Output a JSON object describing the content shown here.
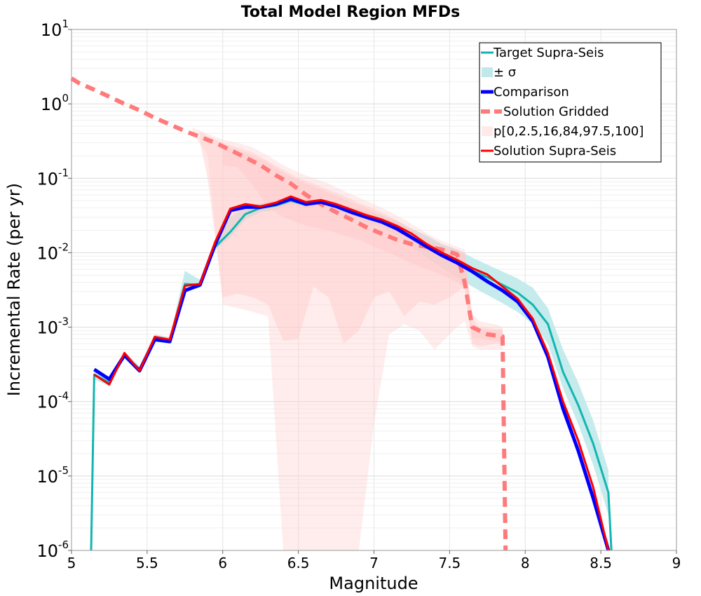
{
  "chart_data": {
    "type": "line",
    "title": "Total Model Region MFDs",
    "xlabel": "Magnitude",
    "ylabel": "Incremental Rate (per yr)",
    "xlim": [
      5,
      9
    ],
    "ylim": [
      1e-06,
      10
    ],
    "yscale": "log",
    "grid": true,
    "legend_position": "top-right",
    "x_ticks": [
      "5",
      "5.5",
      "6",
      "6.5",
      "7",
      "7.5",
      "8",
      "8.5",
      "9"
    ],
    "y_ticks": [
      {
        "value": 1e-06,
        "base": "10",
        "exp": "-6"
      },
      {
        "value": 1e-05,
        "base": "10",
        "exp": "-5"
      },
      {
        "value": 0.0001,
        "base": "10",
        "exp": "-4"
      },
      {
        "value": 0.001,
        "base": "10",
        "exp": "-3"
      },
      {
        "value": 0.01,
        "base": "10",
        "exp": "-2"
      },
      {
        "value": 0.1,
        "base": "10",
        "exp": "-1"
      },
      {
        "value": 1,
        "base": "10",
        "exp": "0"
      },
      {
        "value": 10,
        "base": "10",
        "exp": "1"
      }
    ],
    "legend": [
      {
        "label": "Target Supra-Seis",
        "style": "line",
        "color": "#12b5b0"
      },
      {
        "label": "± σ",
        "style": "patch",
        "color": "#bfe9ea"
      },
      {
        "label": "Comparison",
        "style": "thick",
        "color": "#0000ff"
      },
      {
        "label": "Solution Gridded",
        "style": "dashed",
        "color": "#ff7b7b"
      },
      {
        "label": "p[0,2.5,16,84,97.5,100]",
        "style": "patch",
        "color": "#ffe9e9"
      },
      {
        "label": "Solution Supra-Seis",
        "style": "line",
        "color": "#ff0000"
      }
    ],
    "series": [
      {
        "name": "Solution Gridded",
        "color": "#ff7b7b",
        "style": "dashed",
        "x": [
          5.0,
          5.05,
          5.15,
          5.25,
          5.35,
          5.45,
          5.55,
          5.65,
          5.75,
          5.85,
          5.95,
          6.05,
          6.15,
          6.25,
          6.35,
          6.45,
          6.55,
          6.65,
          6.75,
          6.85,
          6.95,
          7.05,
          7.15,
          7.25,
          7.35,
          7.45,
          7.55,
          7.6,
          7.65,
          7.75,
          7.85,
          7.85,
          7.87
        ],
        "y": [
          2.2,
          1.9,
          1.55,
          1.25,
          1.0,
          0.82,
          0.65,
          0.53,
          0.43,
          0.36,
          0.3,
          0.24,
          0.19,
          0.15,
          0.11,
          0.085,
          0.06,
          0.045,
          0.035,
          0.028,
          0.022,
          0.018,
          0.015,
          0.013,
          0.012,
          0.011,
          0.0095,
          0.004,
          0.001,
          0.0008,
          0.00075,
          0.00075,
          1e-06
        ]
      },
      {
        "name": "Target Supra-Seis",
        "color": "#12b5b0",
        "style": "line",
        "x": [
          5.13,
          5.15,
          5.25,
          5.35,
          5.45,
          5.55,
          5.65,
          5.75,
          5.85,
          5.95,
          6.05,
          6.15,
          6.25,
          6.35,
          6.45,
          6.55,
          6.65,
          6.75,
          6.85,
          6.95,
          7.05,
          7.15,
          7.25,
          7.35,
          7.45,
          7.55,
          7.65,
          7.75,
          7.85,
          7.95,
          8.05,
          8.15,
          8.25,
          8.35,
          8.45,
          8.55,
          8.57
        ],
        "y": [
          1e-06,
          0.00023,
          0.00018,
          0.00042,
          0.00027,
          0.00072,
          0.00066,
          0.0038,
          0.0037,
          0.012,
          0.019,
          0.033,
          0.04,
          0.043,
          0.05,
          0.044,
          0.048,
          0.042,
          0.036,
          0.031,
          0.027,
          0.022,
          0.016,
          0.012,
          0.0092,
          0.0072,
          0.0057,
          0.0047,
          0.0037,
          0.0029,
          0.002,
          0.0011,
          0.00025,
          9e-05,
          2.7e-05,
          6e-06,
          1e-06
        ]
      },
      {
        "name": "Comparison",
        "color": "#0000ff",
        "style": "thick",
        "x": [
          5.15,
          5.25,
          5.35,
          5.45,
          5.55,
          5.65,
          5.75,
          5.85,
          5.95,
          6.05,
          6.15,
          6.25,
          6.35,
          6.45,
          6.55,
          6.65,
          6.75,
          6.85,
          6.95,
          7.05,
          7.15,
          7.25,
          7.35,
          7.45,
          7.55,
          7.65,
          7.75,
          7.85,
          7.95,
          8.05,
          8.15,
          8.25,
          8.35,
          8.45,
          8.55
        ],
        "y": [
          0.00027,
          0.0002,
          0.00042,
          0.00026,
          0.00068,
          0.00064,
          0.0031,
          0.0037,
          0.013,
          0.037,
          0.041,
          0.041,
          0.045,
          0.053,
          0.045,
          0.048,
          0.042,
          0.035,
          0.03,
          0.026,
          0.021,
          0.016,
          0.012,
          0.0092,
          0.0073,
          0.0056,
          0.0041,
          0.0031,
          0.0022,
          0.0012,
          0.0004,
          8e-05,
          2.2e-05,
          5e-06,
          1e-06
        ]
      },
      {
        "name": "Solution Supra-Seis",
        "color": "#ff0000",
        "style": "line",
        "x": [
          5.15,
          5.25,
          5.35,
          5.45,
          5.55,
          5.65,
          5.75,
          5.85,
          5.95,
          6.05,
          6.15,
          6.25,
          6.35,
          6.45,
          6.55,
          6.65,
          6.75,
          6.85,
          6.95,
          7.05,
          7.15,
          7.25,
          7.35,
          7.45,
          7.55,
          7.65,
          7.75,
          7.85,
          7.95,
          8.05,
          8.15,
          8.25,
          8.35,
          8.45,
          8.55
        ],
        "y": [
          0.00023,
          0.00017,
          0.00045,
          0.00026,
          0.00074,
          0.00068,
          0.0036,
          0.0038,
          0.014,
          0.039,
          0.045,
          0.042,
          0.047,
          0.057,
          0.048,
          0.051,
          0.045,
          0.038,
          0.032,
          0.028,
          0.023,
          0.018,
          0.013,
          0.01,
          0.008,
          0.0062,
          0.0051,
          0.0035,
          0.0024,
          0.0013,
          0.00045,
          0.0001,
          3e-05,
          7e-06,
          1e-06
        ]
      }
    ],
    "bands": [
      {
        "name": "± σ",
        "color": "#bfe9ea",
        "opacity": 0.9,
        "x": [
          5.15,
          5.25,
          5.35,
          5.45,
          5.55,
          5.65,
          5.75,
          5.85,
          5.95,
          6.05,
          6.15,
          6.25,
          6.35,
          6.45,
          6.55,
          6.65,
          6.75,
          6.85,
          6.95,
          7.05,
          7.15,
          7.25,
          7.35,
          7.45,
          7.55,
          7.65,
          7.75,
          7.85,
          7.95,
          8.05,
          8.15,
          8.25,
          8.35,
          8.45,
          8.55
        ],
        "lower": [
          0.0002,
          0.00016,
          0.00038,
          0.00024,
          0.00064,
          0.0006,
          0.003,
          0.0034,
          0.011,
          0.016,
          0.028,
          0.035,
          0.038,
          0.045,
          0.04,
          0.043,
          0.037,
          0.031,
          0.026,
          0.022,
          0.017,
          0.012,
          0.0085,
          0.0063,
          0.0047,
          0.0035,
          0.0027,
          0.0021,
          0.0016,
          0.0011,
          0.0006,
          0.00015,
          5e-05,
          1.4e-05,
          3e-06
        ],
        "upper": [
          0.00026,
          0.0002,
          0.00047,
          0.0003,
          0.0008,
          0.00073,
          0.0057,
          0.0043,
          0.014,
          0.03,
          0.04,
          0.046,
          0.05,
          0.058,
          0.05,
          0.053,
          0.047,
          0.041,
          0.036,
          0.032,
          0.027,
          0.021,
          0.017,
          0.013,
          0.011,
          0.0086,
          0.0069,
          0.0056,
          0.0045,
          0.0034,
          0.0018,
          0.0005,
          0.00018,
          5.5e-05,
          1.2e-05
        ]
      },
      {
        "name": "p[0,2.5,16,84,97.5,100]",
        "color": "#ffcaca",
        "opacity": 0.35,
        "x": [
          5.8,
          5.9,
          6.0,
          6.1,
          6.2,
          6.3,
          6.4,
          6.5,
          6.6,
          6.7,
          6.8,
          6.9,
          7.0,
          7.1,
          7.2,
          7.3,
          7.4,
          7.5,
          7.55,
          7.6,
          7.65,
          7.7,
          7.8,
          7.85
        ],
        "lower": [
          0.42,
          0.2,
          0.002,
          0.0018,
          0.0016,
          0.0014,
          1e-06,
          1e-06,
          1e-06,
          1e-06,
          1e-06,
          1e-06,
          5e-05,
          0.0008,
          0.0011,
          0.0009,
          0.0005,
          0.0008,
          0.001,
          0.0012,
          0.00055,
          0.0005,
          0.0005,
          0.0005
        ],
        "upper": [
          0.48,
          0.4,
          0.33,
          0.3,
          0.26,
          0.2,
          0.15,
          0.12,
          0.1,
          0.085,
          0.068,
          0.055,
          0.045,
          0.036,
          0.028,
          0.021,
          0.016,
          0.013,
          0.012,
          0.011,
          0.0015,
          0.0012,
          0.0011,
          0.001
        ]
      },
      {
        "name": "p[0,2.5,16,84,97.5,100]",
        "color": "#ffcaca",
        "opacity": 0.45,
        "x": [
          5.85,
          5.9,
          6.0,
          6.1,
          6.2,
          6.3,
          6.4,
          6.5,
          6.6,
          6.7,
          6.8,
          6.9,
          7.0,
          7.1,
          7.2,
          7.3,
          7.4,
          7.5,
          7.55,
          7.6,
          7.65,
          7.7,
          7.8,
          7.85
        ],
        "lower": [
          0.3,
          0.1,
          0.0025,
          0.0028,
          0.0025,
          0.002,
          0.00065,
          0.0007,
          0.0035,
          0.0025,
          0.0006,
          0.0009,
          0.0025,
          0.003,
          0.0014,
          0.0022,
          0.002,
          0.0025,
          0.003,
          0.0035,
          0.0006,
          0.00055,
          0.0006,
          0.0006
        ],
        "upper": [
          0.42,
          0.37,
          0.3,
          0.26,
          0.22,
          0.17,
          0.13,
          0.1,
          0.085,
          0.07,
          0.058,
          0.047,
          0.039,
          0.031,
          0.024,
          0.018,
          0.014,
          0.012,
          0.011,
          0.01,
          0.0013,
          0.001,
          0.00095,
          0.00095
        ]
      },
      {
        "name": "p[0,2.5,16,84,97.5,100]",
        "color": "#ffcaca",
        "opacity": 0.55,
        "x": [
          6.0,
          6.1,
          6.2,
          6.3,
          6.4,
          6.5,
          6.6,
          6.7,
          6.8,
          6.9,
          7.0,
          7.1,
          7.2,
          7.3,
          7.4,
          7.5,
          7.55,
          7.6,
          7.65,
          7.7,
          7.8,
          7.85
        ],
        "lower": [
          0.15,
          0.14,
          0.08,
          0.04,
          0.03,
          0.025,
          0.022,
          0.02,
          0.017,
          0.015,
          0.012,
          0.01,
          0.008,
          0.0065,
          0.0055,
          0.0045,
          0.004,
          0.0035,
          0.0007,
          0.0007,
          0.00065,
          0.00065
        ],
        "upper": [
          0.28,
          0.24,
          0.2,
          0.16,
          0.12,
          0.095,
          0.078,
          0.065,
          0.053,
          0.044,
          0.036,
          0.029,
          0.023,
          0.017,
          0.013,
          0.011,
          0.0105,
          0.0095,
          0.0011,
          0.00095,
          0.0009,
          0.0009
        ]
      }
    ]
  }
}
